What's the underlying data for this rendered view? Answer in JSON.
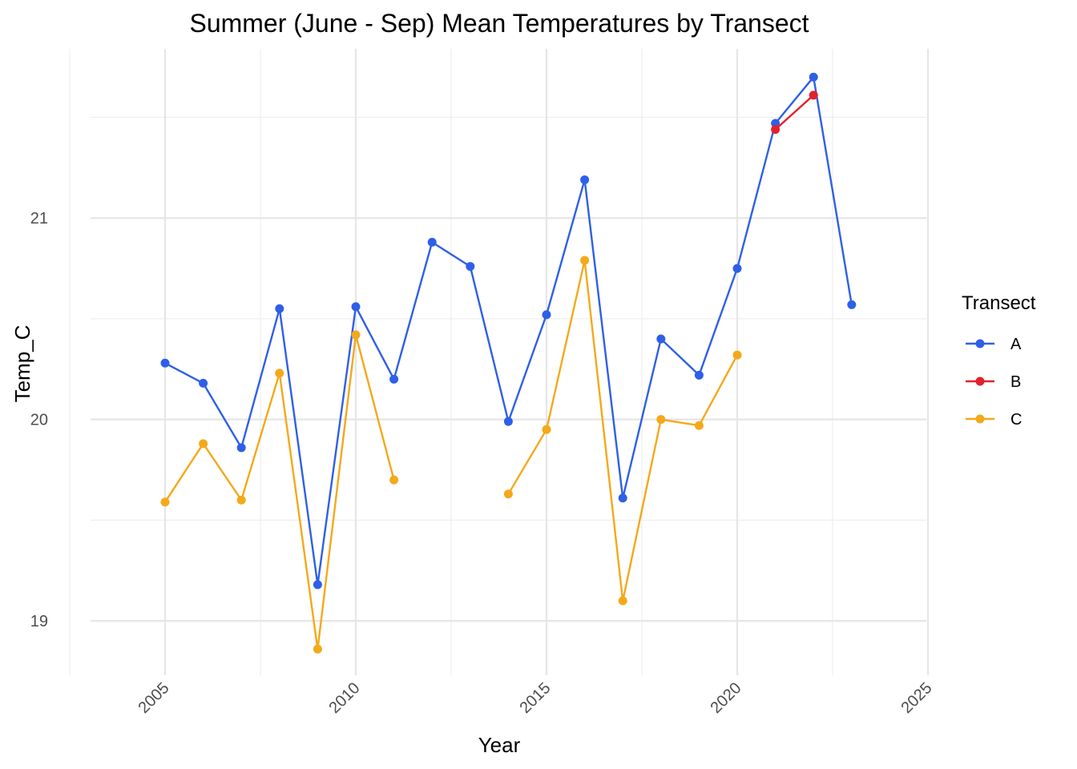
{
  "chart_data": {
    "type": "line",
    "title": "Summer (June - Sep) Mean Temperatures by Transect",
    "xlabel": "Year",
    "ylabel": "Temp_C",
    "xlim": [
      2002.5,
      2025
    ],
    "ylim": [
      18.73,
      21.84
    ],
    "x_ticks": [
      2005,
      2010,
      2015,
      2020,
      2025
    ],
    "x_tick_labels": [
      "2005",
      "2010",
      "2015",
      "2020",
      "2025"
    ],
    "x_minor_ticks": [
      2002.5,
      2007.5,
      2012.5,
      2017.5,
      2022.5
    ],
    "y_ticks": [
      19,
      20,
      21
    ],
    "y_tick_labels": [
      "19",
      "20",
      "21"
    ],
    "y_minor_ticks": [
      19.5,
      20.5,
      21.5
    ],
    "grid": true,
    "legend": {
      "title": "Transect",
      "position": "right"
    },
    "series": [
      {
        "name": "A",
        "color": "#2e5fe8",
        "points": [
          [
            2005,
            20.28
          ],
          [
            2006,
            20.18
          ],
          [
            2007,
            19.86
          ],
          [
            2008,
            20.55
          ],
          [
            2009,
            19.18
          ],
          [
            2010,
            20.56
          ],
          [
            2011,
            20.2
          ],
          [
            2012,
            20.88
          ],
          [
            2013,
            20.76
          ],
          [
            2014,
            19.99
          ],
          [
            2015,
            20.52
          ],
          [
            2016,
            21.19
          ],
          [
            2017,
            19.61
          ],
          [
            2018,
            20.4
          ],
          [
            2019,
            20.22
          ],
          [
            2020,
            20.75
          ],
          [
            2021,
            21.47
          ],
          [
            2022,
            21.7
          ],
          [
            2023,
            20.57
          ]
        ]
      },
      {
        "name": "B",
        "color": "#e2212a",
        "points": [
          [
            2021,
            21.44
          ],
          [
            2022,
            21.61
          ]
        ]
      },
      {
        "name": "C",
        "color": "#f5a81a",
        "segments": [
          [
            [
              2005,
              19.59
            ],
            [
              2006,
              19.88
            ],
            [
              2007,
              19.6
            ],
            [
              2008,
              20.23
            ],
            [
              2009,
              18.86
            ],
            [
              2010,
              20.42
            ],
            [
              2011,
              19.7
            ]
          ],
          [
            [
              2014,
              19.63
            ],
            [
              2015,
              19.95
            ],
            [
              2016,
              20.79
            ],
            [
              2017,
              19.1
            ],
            [
              2018,
              20.0
            ],
            [
              2019,
              19.97
            ],
            [
              2020,
              20.32
            ]
          ]
        ]
      }
    ]
  }
}
